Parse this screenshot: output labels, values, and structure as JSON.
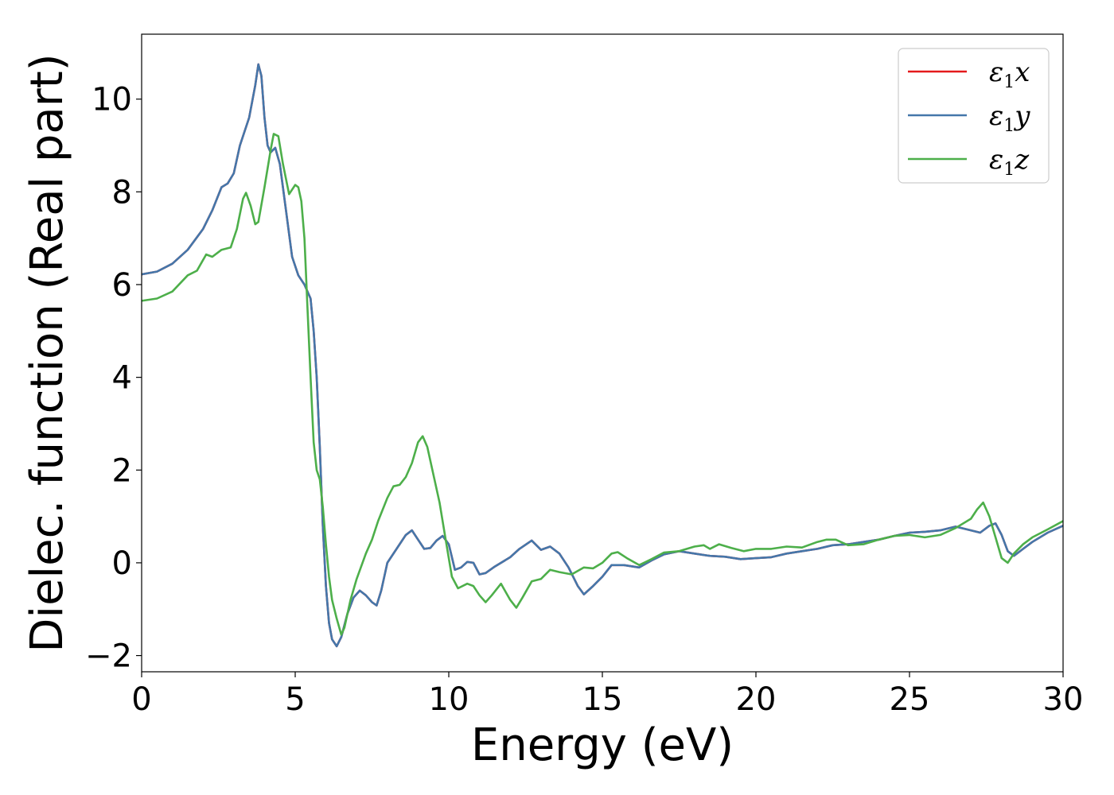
{
  "chart_data": {
    "type": "line",
    "xlabel": "Energy (eV)",
    "ylabel": "Dielec. function (Real part)",
    "xlim": [
      0,
      30
    ],
    "ylim": [
      -2.35,
      11.4
    ],
    "x_ticks": [
      0,
      5,
      10,
      15,
      20,
      25,
      30
    ],
    "x_tick_labels": [
      "0",
      "5",
      "10",
      "15",
      "20",
      "25",
      "30"
    ],
    "y_ticks": [
      -2,
      0,
      2,
      4,
      6,
      8,
      10
    ],
    "y_tick_labels": [
      "−2",
      "0",
      "2",
      "4",
      "6",
      "8",
      "10"
    ],
    "grid": false,
    "legend_position": "top-right",
    "series": [
      {
        "name": "ε1x",
        "color": "#e41a1c",
        "points": [
          [
            0,
            6.22
          ],
          [
            0.5,
            6.28
          ],
          [
            1,
            6.45
          ],
          [
            1.5,
            6.75
          ],
          [
            2,
            7.2
          ],
          [
            2.3,
            7.6
          ],
          [
            2.6,
            8.1
          ],
          [
            2.8,
            8.18
          ],
          [
            3,
            8.4
          ],
          [
            3.2,
            9.0
          ],
          [
            3.5,
            9.6
          ],
          [
            3.7,
            10.3
          ],
          [
            3.8,
            10.75
          ],
          [
            3.9,
            10.5
          ],
          [
            4.0,
            9.6
          ],
          [
            4.1,
            9.0
          ],
          [
            4.2,
            8.85
          ],
          [
            4.35,
            8.95
          ],
          [
            4.5,
            8.6
          ],
          [
            4.7,
            7.6
          ],
          [
            4.9,
            6.6
          ],
          [
            5.1,
            6.2
          ],
          [
            5.3,
            6.0
          ],
          [
            5.5,
            5.7
          ],
          [
            5.6,
            5.0
          ],
          [
            5.7,
            4.0
          ],
          [
            5.8,
            2.5
          ],
          [
            5.9,
            0.8
          ],
          [
            6.0,
            -0.5
          ],
          [
            6.1,
            -1.3
          ],
          [
            6.2,
            -1.65
          ],
          [
            6.35,
            -1.8
          ],
          [
            6.5,
            -1.6
          ],
          [
            6.7,
            -1.1
          ],
          [
            6.9,
            -0.75
          ],
          [
            7.1,
            -0.6
          ],
          [
            7.3,
            -0.7
          ],
          [
            7.5,
            -0.85
          ],
          [
            7.65,
            -0.92
          ],
          [
            7.8,
            -0.6
          ],
          [
            8.0,
            0.0
          ],
          [
            8.3,
            0.3
          ],
          [
            8.6,
            0.6
          ],
          [
            8.8,
            0.7
          ],
          [
            9.0,
            0.5
          ],
          [
            9.2,
            0.3
          ],
          [
            9.4,
            0.32
          ],
          [
            9.6,
            0.48
          ],
          [
            9.8,
            0.58
          ],
          [
            10.0,
            0.4
          ],
          [
            10.2,
            -0.15
          ],
          [
            10.4,
            -0.1
          ],
          [
            10.6,
            0.02
          ],
          [
            10.8,
            0.0
          ],
          [
            11.0,
            -0.25
          ],
          [
            11.2,
            -0.22
          ],
          [
            11.5,
            -0.08
          ],
          [
            12.0,
            0.12
          ],
          [
            12.3,
            0.3
          ],
          [
            12.7,
            0.48
          ],
          [
            13.0,
            0.28
          ],
          [
            13.3,
            0.35
          ],
          [
            13.6,
            0.2
          ],
          [
            13.9,
            -0.1
          ],
          [
            14.2,
            -0.5
          ],
          [
            14.4,
            -0.68
          ],
          [
            14.7,
            -0.5
          ],
          [
            15.0,
            -0.3
          ],
          [
            15.3,
            -0.05
          ],
          [
            15.7,
            -0.05
          ],
          [
            16.2,
            -0.1
          ],
          [
            16.6,
            0.05
          ],
          [
            17.0,
            0.18
          ],
          [
            17.5,
            0.25
          ],
          [
            18.0,
            0.2
          ],
          [
            18.5,
            0.15
          ],
          [
            19.0,
            0.13
          ],
          [
            19.5,
            0.08
          ],
          [
            20.0,
            0.1
          ],
          [
            20.5,
            0.12
          ],
          [
            21.0,
            0.2
          ],
          [
            21.5,
            0.25
          ],
          [
            22.0,
            0.3
          ],
          [
            22.5,
            0.38
          ],
          [
            23.0,
            0.4
          ],
          [
            23.5,
            0.45
          ],
          [
            24.0,
            0.5
          ],
          [
            24.5,
            0.58
          ],
          [
            25.0,
            0.65
          ],
          [
            25.5,
            0.67
          ],
          [
            26.0,
            0.7
          ],
          [
            26.5,
            0.78
          ],
          [
            27.0,
            0.7
          ],
          [
            27.3,
            0.65
          ],
          [
            27.6,
            0.8
          ],
          [
            27.8,
            0.85
          ],
          [
            28.0,
            0.6
          ],
          [
            28.2,
            0.25
          ],
          [
            28.4,
            0.15
          ],
          [
            28.7,
            0.3
          ],
          [
            29.0,
            0.45
          ],
          [
            29.5,
            0.65
          ],
          [
            30.0,
            0.8
          ]
        ]
      },
      {
        "name": "ε1y",
        "color": "#4477aa",
        "points": [
          [
            0,
            6.22
          ],
          [
            0.5,
            6.28
          ],
          [
            1,
            6.45
          ],
          [
            1.5,
            6.75
          ],
          [
            2,
            7.2
          ],
          [
            2.3,
            7.6
          ],
          [
            2.6,
            8.1
          ],
          [
            2.8,
            8.18
          ],
          [
            3,
            8.4
          ],
          [
            3.2,
            9.0
          ],
          [
            3.5,
            9.6
          ],
          [
            3.7,
            10.3
          ],
          [
            3.8,
            10.75
          ],
          [
            3.9,
            10.5
          ],
          [
            4.0,
            9.6
          ],
          [
            4.1,
            9.0
          ],
          [
            4.2,
            8.85
          ],
          [
            4.35,
            8.95
          ],
          [
            4.5,
            8.6
          ],
          [
            4.7,
            7.6
          ],
          [
            4.9,
            6.6
          ],
          [
            5.1,
            6.2
          ],
          [
            5.3,
            6.0
          ],
          [
            5.5,
            5.7
          ],
          [
            5.6,
            5.0
          ],
          [
            5.7,
            4.0
          ],
          [
            5.8,
            2.5
          ],
          [
            5.9,
            0.8
          ],
          [
            6.0,
            -0.5
          ],
          [
            6.1,
            -1.3
          ],
          [
            6.2,
            -1.65
          ],
          [
            6.35,
            -1.8
          ],
          [
            6.5,
            -1.6
          ],
          [
            6.7,
            -1.1
          ],
          [
            6.9,
            -0.75
          ],
          [
            7.1,
            -0.6
          ],
          [
            7.3,
            -0.7
          ],
          [
            7.5,
            -0.85
          ],
          [
            7.65,
            -0.92
          ],
          [
            7.8,
            -0.6
          ],
          [
            8.0,
            0.0
          ],
          [
            8.3,
            0.3
          ],
          [
            8.6,
            0.6
          ],
          [
            8.8,
            0.7
          ],
          [
            9.0,
            0.5
          ],
          [
            9.2,
            0.3
          ],
          [
            9.4,
            0.32
          ],
          [
            9.6,
            0.48
          ],
          [
            9.8,
            0.58
          ],
          [
            10.0,
            0.4
          ],
          [
            10.2,
            -0.15
          ],
          [
            10.4,
            -0.1
          ],
          [
            10.6,
            0.02
          ],
          [
            10.8,
            0.0
          ],
          [
            11.0,
            -0.25
          ],
          [
            11.2,
            -0.22
          ],
          [
            11.5,
            -0.08
          ],
          [
            12.0,
            0.12
          ],
          [
            12.3,
            0.3
          ],
          [
            12.7,
            0.48
          ],
          [
            13.0,
            0.28
          ],
          [
            13.3,
            0.35
          ],
          [
            13.6,
            0.2
          ],
          [
            13.9,
            -0.1
          ],
          [
            14.2,
            -0.5
          ],
          [
            14.4,
            -0.68
          ],
          [
            14.7,
            -0.5
          ],
          [
            15.0,
            -0.3
          ],
          [
            15.3,
            -0.05
          ],
          [
            15.7,
            -0.05
          ],
          [
            16.2,
            -0.1
          ],
          [
            16.6,
            0.05
          ],
          [
            17.0,
            0.18
          ],
          [
            17.5,
            0.25
          ],
          [
            18.0,
            0.2
          ],
          [
            18.5,
            0.15
          ],
          [
            19.0,
            0.13
          ],
          [
            19.5,
            0.08
          ],
          [
            20.0,
            0.1
          ],
          [
            20.5,
            0.12
          ],
          [
            21.0,
            0.2
          ],
          [
            21.5,
            0.25
          ],
          [
            22.0,
            0.3
          ],
          [
            22.5,
            0.38
          ],
          [
            23.0,
            0.4
          ],
          [
            23.5,
            0.45
          ],
          [
            24.0,
            0.5
          ],
          [
            24.5,
            0.58
          ],
          [
            25.0,
            0.65
          ],
          [
            25.5,
            0.67
          ],
          [
            26.0,
            0.7
          ],
          [
            26.5,
            0.78
          ],
          [
            27.0,
            0.7
          ],
          [
            27.3,
            0.65
          ],
          [
            27.6,
            0.8
          ],
          [
            27.8,
            0.85
          ],
          [
            28.0,
            0.6
          ],
          [
            28.2,
            0.25
          ],
          [
            28.4,
            0.15
          ],
          [
            28.7,
            0.3
          ],
          [
            29.0,
            0.45
          ],
          [
            29.5,
            0.65
          ],
          [
            30.0,
            0.8
          ]
        ]
      },
      {
        "name": "ε1z",
        "color": "#4daf4a",
        "points": [
          [
            0,
            5.65
          ],
          [
            0.5,
            5.7
          ],
          [
            1.0,
            5.85
          ],
          [
            1.5,
            6.2
          ],
          [
            1.8,
            6.3
          ],
          [
            2.1,
            6.65
          ],
          [
            2.3,
            6.6
          ],
          [
            2.6,
            6.75
          ],
          [
            2.9,
            6.8
          ],
          [
            3.1,
            7.2
          ],
          [
            3.3,
            7.85
          ],
          [
            3.4,
            7.98
          ],
          [
            3.55,
            7.7
          ],
          [
            3.7,
            7.3
          ],
          [
            3.8,
            7.35
          ],
          [
            4.0,
            8.1
          ],
          [
            4.2,
            8.9
          ],
          [
            4.3,
            9.25
          ],
          [
            4.45,
            9.2
          ],
          [
            4.6,
            8.6
          ],
          [
            4.8,
            7.95
          ],
          [
            5.0,
            8.15
          ],
          [
            5.1,
            8.1
          ],
          [
            5.2,
            7.8
          ],
          [
            5.3,
            7.0
          ],
          [
            5.4,
            5.5
          ],
          [
            5.5,
            4.0
          ],
          [
            5.6,
            2.6
          ],
          [
            5.7,
            2.0
          ],
          [
            5.8,
            1.8
          ],
          [
            5.9,
            1.2
          ],
          [
            6.0,
            0.4
          ],
          [
            6.1,
            -0.3
          ],
          [
            6.2,
            -0.8
          ],
          [
            6.35,
            -1.2
          ],
          [
            6.5,
            -1.55
          ],
          [
            6.6,
            -1.4
          ],
          [
            6.8,
            -0.8
          ],
          [
            7.0,
            -0.35
          ],
          [
            7.3,
            0.2
          ],
          [
            7.5,
            0.5
          ],
          [
            7.7,
            0.9
          ],
          [
            8.0,
            1.4
          ],
          [
            8.2,
            1.65
          ],
          [
            8.4,
            1.68
          ],
          [
            8.6,
            1.85
          ],
          [
            8.8,
            2.15
          ],
          [
            9.0,
            2.6
          ],
          [
            9.15,
            2.73
          ],
          [
            9.3,
            2.5
          ],
          [
            9.5,
            1.9
          ],
          [
            9.7,
            1.3
          ],
          [
            9.9,
            0.5
          ],
          [
            10.1,
            -0.3
          ],
          [
            10.3,
            -0.55
          ],
          [
            10.6,
            -0.45
          ],
          [
            10.8,
            -0.5
          ],
          [
            11.0,
            -0.7
          ],
          [
            11.2,
            -0.85
          ],
          [
            11.4,
            -0.7
          ],
          [
            11.7,
            -0.45
          ],
          [
            12.0,
            -0.8
          ],
          [
            12.2,
            -0.97
          ],
          [
            12.4,
            -0.75
          ],
          [
            12.7,
            -0.4
          ],
          [
            13.0,
            -0.35
          ],
          [
            13.3,
            -0.15
          ],
          [
            13.6,
            -0.2
          ],
          [
            14.0,
            -0.25
          ],
          [
            14.4,
            -0.1
          ],
          [
            14.7,
            -0.12
          ],
          [
            15.0,
            0.0
          ],
          [
            15.3,
            0.2
          ],
          [
            15.5,
            0.23
          ],
          [
            15.8,
            0.1
          ],
          [
            16.2,
            -0.05
          ],
          [
            16.6,
            0.08
          ],
          [
            17.0,
            0.22
          ],
          [
            17.5,
            0.25
          ],
          [
            18.0,
            0.35
          ],
          [
            18.3,
            0.38
          ],
          [
            18.5,
            0.3
          ],
          [
            18.8,
            0.4
          ],
          [
            19.2,
            0.32
          ],
          [
            19.6,
            0.25
          ],
          [
            20.0,
            0.3
          ],
          [
            20.5,
            0.3
          ],
          [
            21.0,
            0.35
          ],
          [
            21.5,
            0.33
          ],
          [
            22.0,
            0.45
          ],
          [
            22.3,
            0.5
          ],
          [
            22.6,
            0.5
          ],
          [
            23.0,
            0.38
          ],
          [
            23.5,
            0.4
          ],
          [
            24.0,
            0.5
          ],
          [
            24.5,
            0.58
          ],
          [
            25.0,
            0.6
          ],
          [
            25.5,
            0.55
          ],
          [
            26.0,
            0.6
          ],
          [
            26.5,
            0.75
          ],
          [
            27.0,
            0.95
          ],
          [
            27.2,
            1.15
          ],
          [
            27.4,
            1.3
          ],
          [
            27.6,
            1.0
          ],
          [
            27.8,
            0.55
          ],
          [
            28.0,
            0.1
          ],
          [
            28.2,
            0.0
          ],
          [
            28.4,
            0.2
          ],
          [
            28.7,
            0.4
          ],
          [
            29.0,
            0.55
          ],
          [
            29.5,
            0.72
          ],
          [
            30.0,
            0.9
          ]
        ]
      }
    ]
  }
}
